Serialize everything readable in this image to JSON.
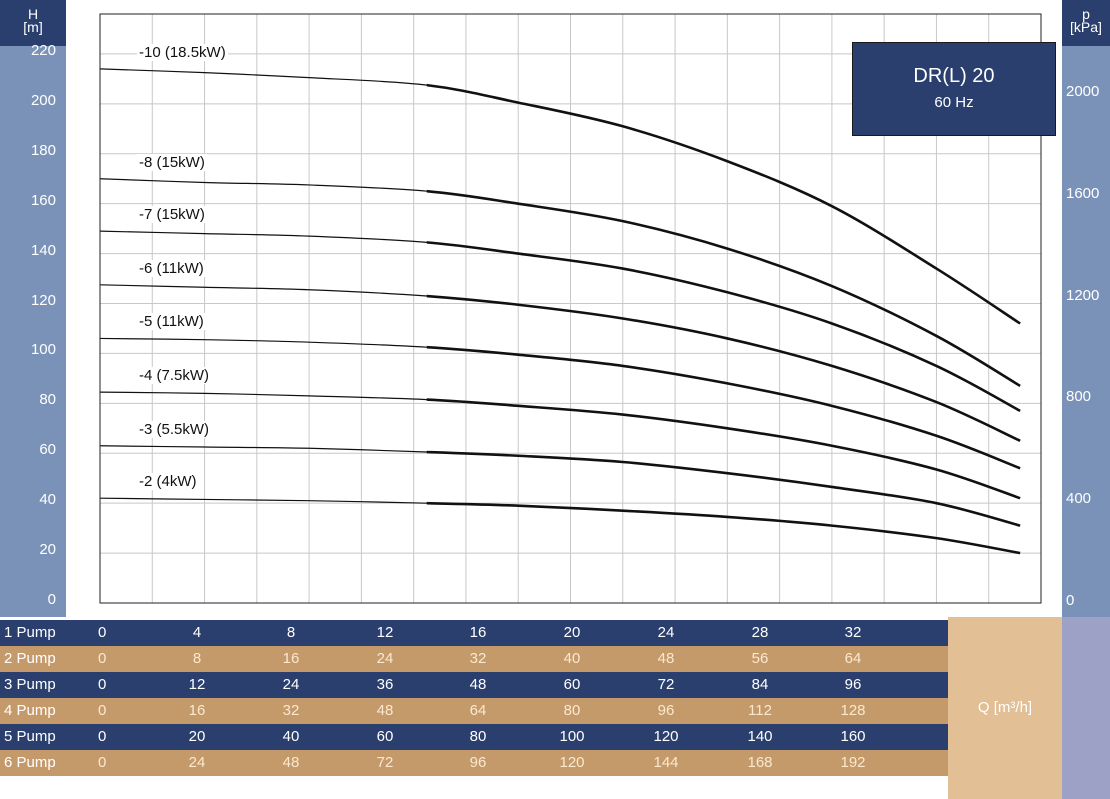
{
  "chart_data": {
    "type": "line",
    "title": "DR(L) 20",
    "subtitle": "60 Hz",
    "y_left_label": [
      "H",
      "[m]"
    ],
    "y_right_label": [
      "p",
      "[kPa]"
    ],
    "x_label": "Q [m³/h]",
    "y_left_ticks": [
      0,
      20,
      40,
      60,
      80,
      100,
      120,
      140,
      160,
      180,
      200,
      220
    ],
    "y_right_ticks": [
      0,
      400,
      800,
      1200,
      1600,
      2000
    ],
    "ylim": [
      0,
      236
    ],
    "xlim": [
      0,
      36
    ],
    "grid": true,
    "series": [
      {
        "name": "-10 (18.5kW)",
        "x": [
          0,
          4,
          8,
          12.5,
          16,
          20,
          24,
          28,
          32,
          35.2
        ],
        "y": [
          214,
          212.5,
          210.5,
          207.5,
          200.5,
          191,
          177,
          159,
          134,
          112
        ]
      },
      {
        "name": "-8 (15kW)",
        "x": [
          0,
          4,
          8,
          12.5,
          16,
          20,
          24,
          28,
          32,
          35.2
        ],
        "y": [
          170,
          168.5,
          167.5,
          165,
          160,
          153,
          142,
          127,
          107,
          87
        ]
      },
      {
        "name": "-7 (15kW)",
        "x": [
          0,
          4,
          8,
          12.5,
          16,
          20,
          24,
          28,
          32,
          35.2
        ],
        "y": [
          149,
          148,
          147,
          144.5,
          140,
          134,
          124.5,
          112,
          95,
          77
        ]
      },
      {
        "name": "-6 (11kW)",
        "x": [
          0,
          4,
          8,
          12.5,
          16,
          20,
          24,
          28,
          32,
          35.2
        ],
        "y": [
          127.5,
          126.5,
          125.5,
          123,
          119.5,
          114,
          106,
          95,
          80.5,
          65
        ]
      },
      {
        "name": "-5 (11kW)",
        "x": [
          0,
          4,
          8,
          12.5,
          16,
          20,
          24,
          28,
          32,
          35.2
        ],
        "y": [
          106,
          105.5,
          104.5,
          102.5,
          99.5,
          95,
          88,
          79,
          67,
          54
        ]
      },
      {
        "name": "-4 (7.5kW)",
        "x": [
          0,
          4,
          8,
          12.5,
          16,
          20,
          24,
          28,
          32,
          35.2
        ],
        "y": [
          84.5,
          84,
          83,
          81.5,
          79,
          75.5,
          70,
          63,
          53.5,
          42
        ]
      },
      {
        "name": "-3 (5.5kW)",
        "x": [
          0,
          4,
          8,
          12.5,
          16,
          20,
          24,
          28,
          32,
          35.2
        ],
        "y": [
          63,
          62.5,
          62,
          60.5,
          59,
          56.5,
          52,
          46.5,
          40,
          31
        ]
      },
      {
        "name": "-2 (4kW)",
        "x": [
          0,
          4,
          8,
          12.5,
          16,
          20,
          24,
          28,
          32,
          35.2
        ],
        "y": [
          42,
          41.5,
          41,
          40,
          39,
          37,
          34.5,
          31,
          26,
          20
        ]
      }
    ]
  },
  "pump_table": {
    "x_label": "Q [m³/h]",
    "rows": [
      {
        "label": "1 Pump",
        "values": [
          "0",
          "4",
          "8",
          "12",
          "16",
          "20",
          "24",
          "28",
          "32"
        ]
      },
      {
        "label": "2 Pump",
        "values": [
          "0",
          "8",
          "16",
          "24",
          "32",
          "40",
          "48",
          "56",
          "64"
        ]
      },
      {
        "label": "3 Pump",
        "values": [
          "0",
          "12",
          "24",
          "36",
          "48",
          "60",
          "72",
          "84",
          "96"
        ]
      },
      {
        "label": "4 Pump",
        "values": [
          "0",
          "16",
          "32",
          "48",
          "64",
          "80",
          "96",
          "112",
          "128"
        ]
      },
      {
        "label": "5 Pump",
        "values": [
          "0",
          "20",
          "40",
          "60",
          "80",
          "100",
          "120",
          "140",
          "160"
        ]
      },
      {
        "label": "6 Pump",
        "values": [
          "0",
          "24",
          "48",
          "72",
          "96",
          "120",
          "144",
          "168",
          "192"
        ]
      }
    ]
  },
  "colors": {
    "navy": "#2a3f6e",
    "axis_blue": "#7a92b7",
    "tan": "#c49a6a",
    "light_tan": "#e2bf95",
    "lavender": "#9ea1c6",
    "curve": "#111111",
    "grid": "#c8c8c8"
  }
}
